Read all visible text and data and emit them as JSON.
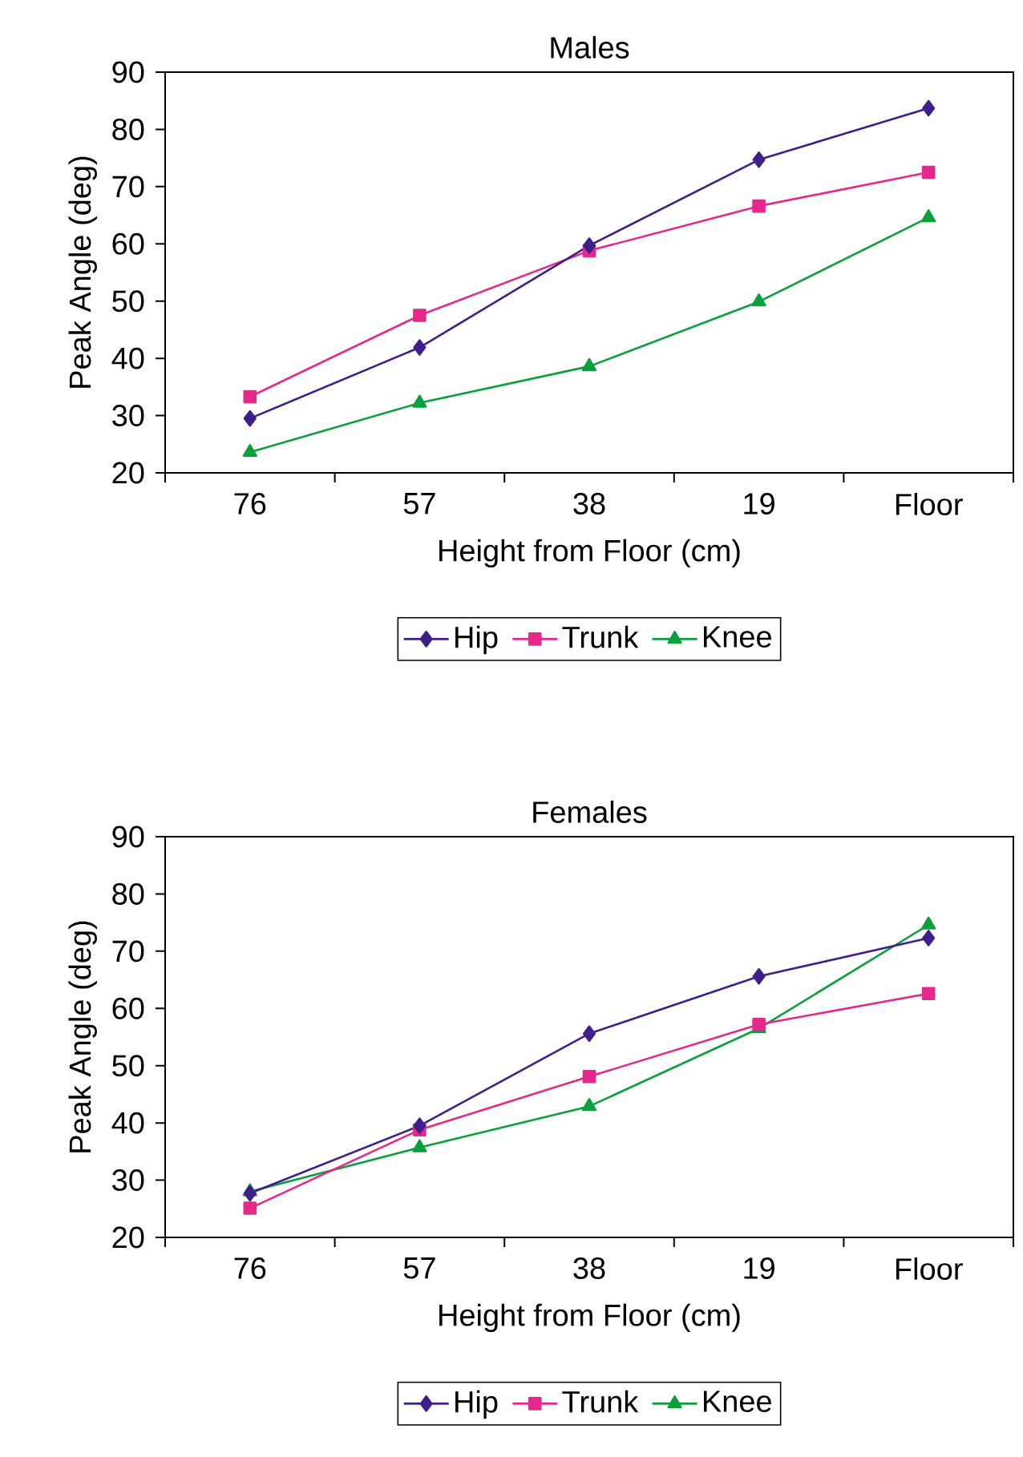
{
  "chart_data": [
    {
      "type": "line",
      "title": "Males",
      "xlabel": "Height from Floor (cm)",
      "ylabel": "Peak Angle (deg)",
      "categories": [
        "76",
        "57",
        "38",
        "19",
        "Floor"
      ],
      "ylim": [
        20,
        90
      ],
      "yticks": [
        20,
        30,
        40,
        50,
        60,
        70,
        80,
        90
      ],
      "legend": "bottom",
      "series": [
        {
          "name": "Hip",
          "color": "#3f1f8a",
          "marker": "diamond",
          "values": [
            29.5,
            41.9,
            59.7,
            74.7,
            83.7
          ]
        },
        {
          "name": "Trunk",
          "color": "#e6288a",
          "marker": "square",
          "values": [
            33.3,
            47.5,
            58.8,
            66.6,
            72.5
          ]
        },
        {
          "name": "Knee",
          "color": "#0aa03c",
          "marker": "triangle",
          "values": [
            23.6,
            32.2,
            38.6,
            49.9,
            64.6
          ]
        }
      ]
    },
    {
      "type": "line",
      "title": "Females",
      "xlabel": "Height from Floor (cm)",
      "ylabel": "Peak Angle (deg)",
      "categories": [
        "76",
        "57",
        "38",
        "19",
        "Floor"
      ],
      "ylim": [
        20,
        90
      ],
      "yticks": [
        20,
        30,
        40,
        50,
        60,
        70,
        80,
        90
      ],
      "legend": "bottom",
      "series": [
        {
          "name": "Hip",
          "color": "#3f1f8a",
          "marker": "diamond",
          "values": [
            27.7,
            39.5,
            55.6,
            65.6,
            72.3
          ]
        },
        {
          "name": "Trunk",
          "color": "#e6288a",
          "marker": "square",
          "values": [
            25.1,
            38.8,
            48.1,
            57.2,
            62.6
          ]
        },
        {
          "name": "Knee",
          "color": "#0aa03c",
          "marker": "triangle",
          "values": [
            28.0,
            35.7,
            42.9,
            56.5,
            74.6
          ]
        }
      ]
    }
  ]
}
